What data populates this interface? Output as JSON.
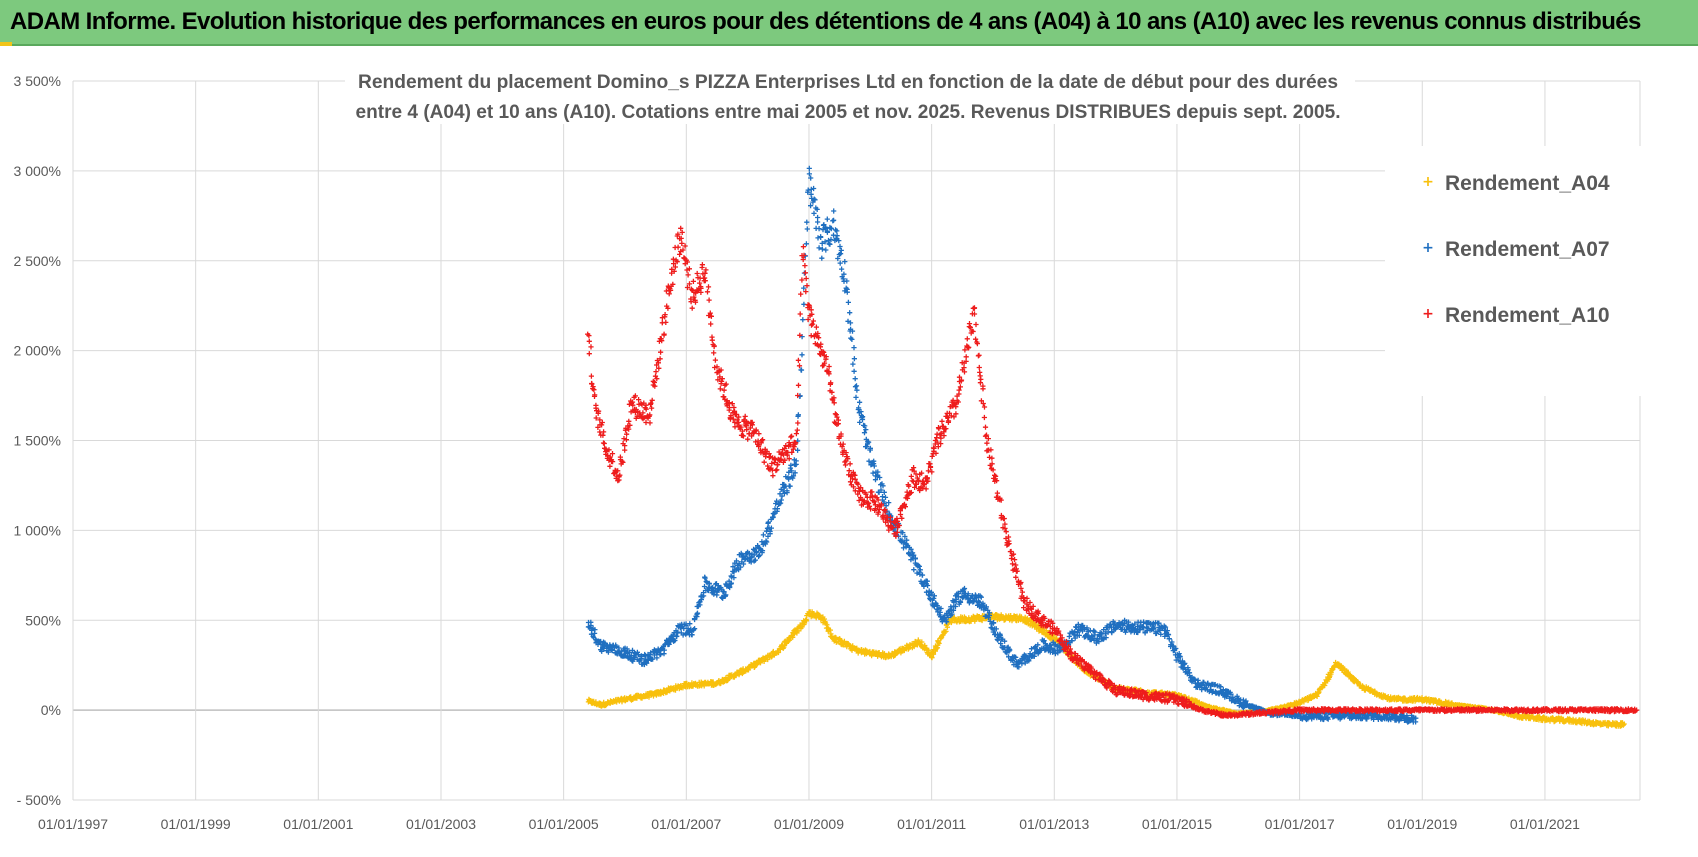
{
  "header": {
    "banner_title": "ADAM Informe. Evolution historique des performances en euros pour des détentions de 4 ans (A04) à 10 ans (A10) avec les revenus connus distribués"
  },
  "colors": {
    "banner": "#7dc97e",
    "grid": "#d9d9d9",
    "axis": "#bfbfbf",
    "text": "#595959",
    "a04": "#f8c00c",
    "a07": "#1f6fc0",
    "a10": "#ee1c1c"
  },
  "chart_data": {
    "type": "scatter",
    "title_lines": [
      "Rendement du placement Domino_s PIZZA Enterprises Ltd en fonction de la date de début pour des durées",
      "entre 4 (A04) et 10 ans (A10).  Cotations entre mai 2005 et nov. 2025. Revenus DISTRIBUES depuis sept. 2005."
    ],
    "x_ticks": [
      "01/01/1997",
      "01/01/1999",
      "01/01/2001",
      "01/01/2003",
      "01/01/2005",
      "01/01/2007",
      "01/01/2009",
      "01/01/2011",
      "01/01/2013",
      "01/01/2015",
      "01/01/2017",
      "01/01/2019",
      "01/01/2021"
    ],
    "xlim": [
      1997.0,
      2022.55
    ],
    "y_ticks": [
      "- 500%",
      "0%",
      "500%",
      "1 000%",
      "1 500%",
      "2 000%",
      "2 500%",
      "3 000%",
      "3 500%"
    ],
    "ylim": [
      -500,
      3500
    ],
    "legend_position": "top-right",
    "series": [
      {
        "name": "Rendement_A04",
        "color_key": "a04",
        "points": [
          [
            2005.4,
            50
          ],
          [
            2005.6,
            30
          ],
          [
            2006.0,
            60
          ],
          [
            2006.5,
            90
          ],
          [
            2007.0,
            140
          ],
          [
            2007.5,
            150
          ],
          [
            2008.0,
            230
          ],
          [
            2008.5,
            330
          ],
          [
            2008.9,
            480
          ],
          [
            2009.0,
            540
          ],
          [
            2009.2,
            520
          ],
          [
            2009.4,
            400
          ],
          [
            2009.8,
            330
          ],
          [
            2010.3,
            300
          ],
          [
            2010.8,
            380
          ],
          [
            2011.0,
            300
          ],
          [
            2011.3,
            500
          ],
          [
            2011.7,
            510
          ],
          [
            2012.0,
            520
          ],
          [
            2012.5,
            510
          ],
          [
            2013.0,
            400
          ],
          [
            2013.5,
            220
          ],
          [
            2014.0,
            120
          ],
          [
            2014.5,
            100
          ],
          [
            2015.0,
            80
          ],
          [
            2015.5,
            20
          ],
          [
            2016.0,
            -20
          ],
          [
            2016.5,
            0
          ],
          [
            2017.0,
            40
          ],
          [
            2017.3,
            90
          ],
          [
            2017.6,
            260
          ],
          [
            2018.0,
            130
          ],
          [
            2018.5,
            60
          ],
          [
            2019.0,
            60
          ],
          [
            2019.5,
            30
          ],
          [
            2020.0,
            10
          ],
          [
            2020.5,
            -30
          ],
          [
            2021.0,
            -50
          ],
          [
            2021.5,
            -60
          ],
          [
            2022.0,
            -80
          ],
          [
            2022.3,
            -80
          ]
        ],
        "jitter": 25
      },
      {
        "name": "Rendement_A07",
        "color_key": "a07",
        "points": [
          [
            2005.4,
            480
          ],
          [
            2005.6,
            360
          ],
          [
            2006.0,
            320
          ],
          [
            2006.3,
            280
          ],
          [
            2006.6,
            330
          ],
          [
            2006.9,
            450
          ],
          [
            2007.1,
            450
          ],
          [
            2007.3,
            700
          ],
          [
            2007.6,
            650
          ],
          [
            2007.9,
            850
          ],
          [
            2008.2,
            880
          ],
          [
            2008.5,
            1150
          ],
          [
            2008.8,
            1380
          ],
          [
            2009.0,
            2950
          ],
          [
            2009.2,
            2600
          ],
          [
            2009.4,
            2700
          ],
          [
            2009.6,
            2400
          ],
          [
            2009.8,
            1700
          ],
          [
            2010.0,
            1400
          ],
          [
            2010.3,
            1100
          ],
          [
            2010.6,
            900
          ],
          [
            2010.9,
            700
          ],
          [
            2011.2,
            500
          ],
          [
            2011.5,
            650
          ],
          [
            2011.8,
            600
          ],
          [
            2012.1,
            400
          ],
          [
            2012.4,
            250
          ],
          [
            2012.8,
            360
          ],
          [
            2013.1,
            340
          ],
          [
            2013.4,
            450
          ],
          [
            2013.7,
            400
          ],
          [
            2014.0,
            470
          ],
          [
            2014.4,
            460
          ],
          [
            2014.8,
            450
          ],
          [
            2015.0,
            300
          ],
          [
            2015.3,
            150
          ],
          [
            2015.7,
            110
          ],
          [
            2016.0,
            50
          ],
          [
            2016.5,
            -20
          ],
          [
            2017.0,
            -30
          ],
          [
            2017.5,
            -30
          ],
          [
            2018.0,
            -30
          ],
          [
            2018.4,
            -30
          ],
          [
            2018.9,
            -50
          ]
        ],
        "jitter": 55
      },
      {
        "name": "Rendement_A10",
        "color_key": "a10",
        "points": [
          [
            2005.4,
            2100
          ],
          [
            2005.5,
            1700
          ],
          [
            2005.7,
            1450
          ],
          [
            2005.9,
            1300
          ],
          [
            2006.1,
            1700
          ],
          [
            2006.4,
            1650
          ],
          [
            2006.7,
            2300
          ],
          [
            2006.9,
            2650
          ],
          [
            2007.1,
            2300
          ],
          [
            2007.3,
            2450
          ],
          [
            2007.5,
            1900
          ],
          [
            2007.8,
            1600
          ],
          [
            2008.1,
            1550
          ],
          [
            2008.4,
            1350
          ],
          [
            2008.8,
            1500
          ],
          [
            2008.9,
            2550
          ],
          [
            2009.0,
            2200
          ],
          [
            2009.3,
            1900
          ],
          [
            2009.5,
            1500
          ],
          [
            2009.8,
            1200
          ],
          [
            2010.1,
            1150
          ],
          [
            2010.4,
            1000
          ],
          [
            2010.7,
            1300
          ],
          [
            2010.9,
            1250
          ],
          [
            2011.1,
            1500
          ],
          [
            2011.4,
            1700
          ],
          [
            2011.7,
            2200
          ],
          [
            2011.9,
            1500
          ],
          [
            2012.2,
            1000
          ],
          [
            2012.5,
            600
          ],
          [
            2012.8,
            500
          ],
          [
            2013.0,
            450
          ],
          [
            2013.3,
            300
          ],
          [
            2013.6,
            220
          ],
          [
            2014.0,
            110
          ],
          [
            2014.5,
            80
          ],
          [
            2015.0,
            60
          ],
          [
            2015.4,
            0
          ],
          [
            2015.8,
            -30
          ],
          [
            2016.2,
            -20
          ],
          [
            2017.0,
            0
          ],
          [
            2018.0,
            0
          ],
          [
            2019.0,
            0
          ],
          [
            2020.0,
            0
          ],
          [
            2021.0,
            0
          ],
          [
            2022.5,
            0
          ]
        ],
        "jitter": 55
      }
    ]
  }
}
